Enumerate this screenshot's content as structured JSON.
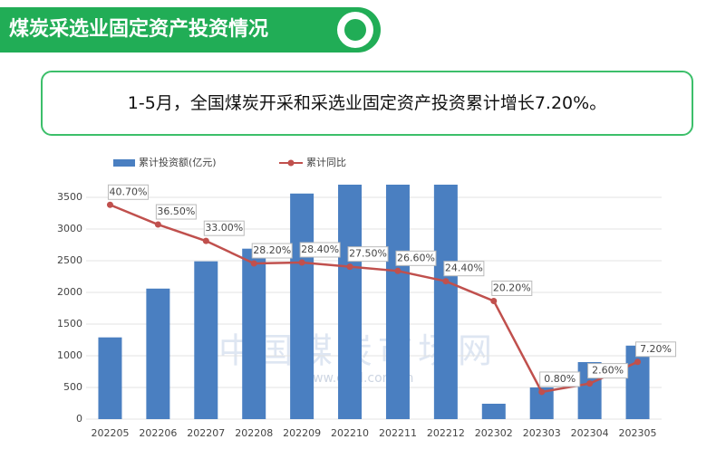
{
  "header": {
    "title": "煤炭采选业固定资产投资情况"
  },
  "note": "1-5月，全国煤炭开采和采选业固定资产投资累计增长7.20%。",
  "chart_data": {
    "type": "bar-line",
    "watermark": [
      "中国煤炭市场网",
      "www.cctd.com.cn"
    ],
    "categories": [
      "202205",
      "202206",
      "202207",
      "202208",
      "202209",
      "202210",
      "202211",
      "202212",
      "202302",
      "202303",
      "202304",
      "202305"
    ],
    "series": [
      {
        "name": "累计投资额(亿元)",
        "type": "bar",
        "color": "#4a7fc1",
        "values": [
          1290,
          2060,
          2490,
          2690,
          3560,
          3700,
          3700,
          3700,
          243,
          500,
          900,
          1160
        ]
      },
      {
        "name": "累计同比",
        "type": "line",
        "axis": "y2",
        "color": "#c0504d",
        "values": [
          40.7,
          36.5,
          33.0,
          28.2,
          28.4,
          27.5,
          26.6,
          24.4,
          20.2,
          0.8,
          2.6,
          7.2
        ],
        "value_labels": [
          "40.70%",
          "36.50%",
          "33.00%",
          "28.20%",
          "28.40%",
          "27.50%",
          "26.60%",
          "24.40%",
          "20.20%",
          "0.80%",
          "2.60%",
          "7.20%"
        ]
      }
    ],
    "ylim": [
      0,
      3700
    ],
    "yticks": [
      0,
      500,
      1000,
      1500,
      2000,
      2500,
      3000,
      3500
    ],
    "y2lim": [
      -5,
      45
    ],
    "grid": true
  }
}
